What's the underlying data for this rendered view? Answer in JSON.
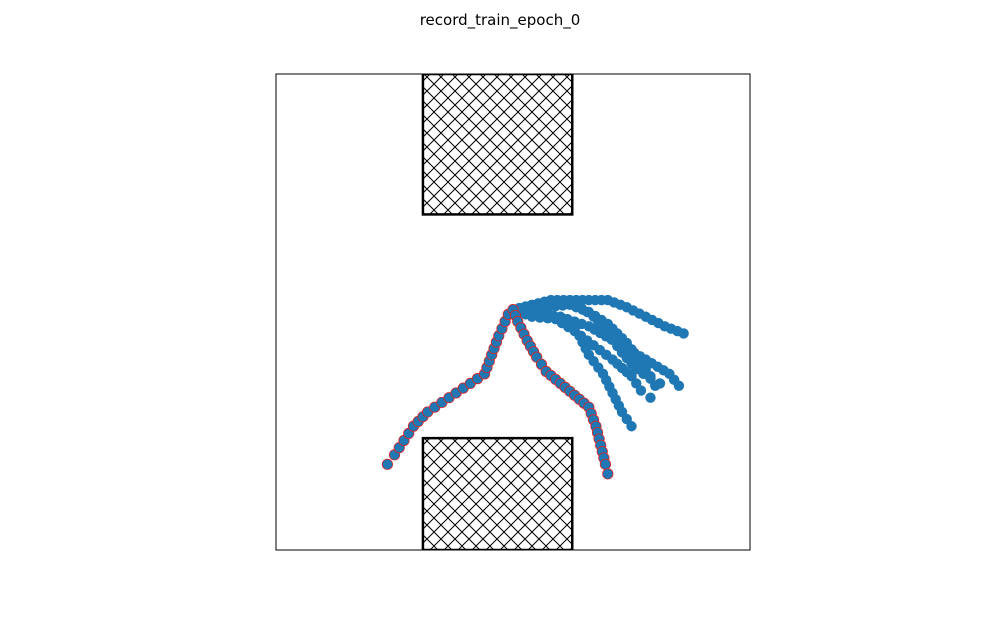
{
  "chart_data": {
    "type": "scatter",
    "title": "record_train_epoch_0",
    "xlabel": "",
    "ylabel": "",
    "xlim": [
      0,
      100
    ],
    "ylim": [
      0,
      100
    ],
    "axes_ticks_visible": false,
    "grid": false,
    "legend": "none",
    "colors": {
      "marker": "#1f77b4",
      "highlight_edge": "#d62728",
      "obstacle_edge": "#000000"
    },
    "obstacles": [
      {
        "name": "top-block",
        "x": [
          31,
          62.5
        ],
        "y": [
          70.5,
          100
        ],
        "hatch": "cross"
      },
      {
        "name": "bottom-block",
        "x": [
          31,
          62.5
        ],
        "y": [
          0,
          23.5
        ],
        "hatch": "cross"
      }
    ],
    "trajectories": [
      {
        "highlighted": true,
        "points": [
          [
            23.5,
            18
          ],
          [
            25,
            20
          ],
          [
            27,
            23
          ],
          [
            29,
            26
          ],
          [
            32,
            29
          ],
          [
            35,
            31
          ],
          [
            38,
            33
          ],
          [
            41,
            35
          ],
          [
            44,
            37
          ],
          [
            45.5,
            41
          ],
          [
            47,
            45
          ],
          [
            49,
            49.5
          ],
          [
            50,
            50.5
          ],
          [
            51,
            48
          ],
          [
            53,
            44
          ],
          [
            55,
            40.5
          ],
          [
            57,
            37.5
          ],
          [
            60,
            35
          ],
          [
            63,
            32.5
          ],
          [
            66,
            30
          ],
          [
            67.5,
            26
          ],
          [
            68.5,
            22
          ],
          [
            69.5,
            18
          ],
          [
            70,
            16
          ]
        ]
      },
      {
        "highlighted": false,
        "points": [
          [
            50,
            50.5
          ],
          [
            54,
            51.5
          ],
          [
            58,
            52.5
          ],
          [
            62,
            52.5
          ],
          [
            66,
            52.5
          ],
          [
            70,
            52.5
          ],
          [
            74,
            51
          ],
          [
            78,
            49
          ],
          [
            82,
            47
          ],
          [
            86,
            45.5
          ]
        ]
      },
      {
        "highlighted": false,
        "points": [
          [
            50,
            50.5
          ],
          [
            56,
            51
          ],
          [
            62,
            51.5
          ],
          [
            66,
            50
          ],
          [
            70,
            47.5
          ],
          [
            74,
            43.5
          ],
          [
            77,
            39.5
          ],
          [
            79,
            36.5
          ],
          [
            80,
            34.5
          ]
        ]
      },
      {
        "highlighted": false,
        "points": [
          [
            50,
            50.5
          ],
          [
            55,
            49.5
          ],
          [
            60,
            49
          ],
          [
            66,
            47
          ],
          [
            72,
            43.5
          ],
          [
            78,
            40
          ],
          [
            83,
            37
          ],
          [
            85,
            34.5
          ]
        ]
      },
      {
        "highlighted": false,
        "points": [
          [
            50,
            50.5
          ],
          [
            54,
            49
          ],
          [
            59,
            48.5
          ],
          [
            63,
            46
          ],
          [
            67,
            43
          ],
          [
            71,
            40
          ],
          [
            75,
            36.5
          ],
          [
            77,
            33.5
          ],
          [
            79,
            32
          ]
        ]
      },
      {
        "highlighted": false,
        "points": [
          [
            50,
            50.5
          ],
          [
            56,
            50
          ],
          [
            61,
            48.5
          ],
          [
            64,
            45
          ],
          [
            66,
            41
          ],
          [
            69,
            37
          ],
          [
            71,
            33
          ],
          [
            73,
            29
          ],
          [
            75,
            26
          ]
        ]
      },
      {
        "highlighted": false,
        "points": [
          [
            50,
            50.5
          ],
          [
            57,
            52
          ],
          [
            63,
            52
          ],
          [
            67,
            49
          ],
          [
            70,
            45.5
          ],
          [
            73,
            41.5
          ],
          [
            76,
            38
          ],
          [
            79,
            36
          ],
          [
            81,
            35
          ]
        ]
      }
    ]
  }
}
